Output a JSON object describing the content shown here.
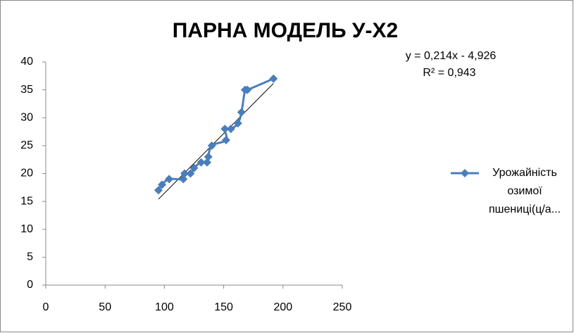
{
  "chart_data": {
    "type": "scatter-smooth",
    "title": "ПАРНА МОДЕЛЬ У-Х2",
    "x": [
      95,
      98,
      104,
      116,
      117,
      122,
      125,
      131,
      136,
      137,
      140,
      152,
      151,
      156,
      162,
      165,
      168,
      170,
      192
    ],
    "series": [
      {
        "name": "Урожайність озимої пшениці(ц/а...",
        "color": "#4a7ebb",
        "values": [
          17,
          18,
          19,
          19,
          20,
          20,
          21,
          22,
          22,
          23,
          25,
          26,
          28,
          28,
          29,
          31,
          35,
          35,
          37
        ]
      }
    ],
    "trendline": {
      "equation": "y = 0,214x - 4,926",
      "r2_label": "R² = 0,943",
      "slope": 0.214,
      "intercept": -4.926,
      "color": "#000000"
    },
    "xlim": [
      0,
      250
    ],
    "xticks": [
      0,
      50,
      100,
      150,
      200,
      250
    ],
    "ylim": [
      0,
      40
    ],
    "yticks": [
      0,
      5,
      10,
      15,
      20,
      25,
      30,
      35,
      40
    ],
    "grid": false,
    "legend": "right"
  }
}
